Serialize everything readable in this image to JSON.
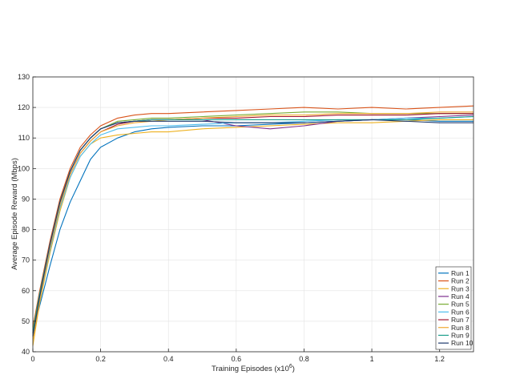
{
  "chart_data": {
    "type": "line",
    "title": "",
    "xlabel": "Training Episodes (x10",
    "xlabel_exp": "6",
    "xlabel_close": ")",
    "ylabel": "Average Episode Reward (Mbps)",
    "xlim": [
      0,
      1.3
    ],
    "ylim": [
      40,
      130
    ],
    "x_ticks": [
      0,
      0.2,
      0.4,
      0.6,
      0.8,
      1,
      1.2
    ],
    "x_tick_labels": [
      "0",
      "0.2",
      "0.4",
      "0.6",
      "0.8",
      "1",
      "1.2"
    ],
    "y_ticks": [
      40,
      50,
      60,
      70,
      80,
      90,
      100,
      110,
      120,
      130
    ],
    "y_tick_labels": [
      "40",
      "50",
      "60",
      "70",
      "80",
      "90",
      "100",
      "110",
      "120",
      "130"
    ],
    "grid": true,
    "legend_position": "bottom-right",
    "series": [
      {
        "name": "Run 1",
        "color": "#0072BD",
        "x": [
          0,
          0.02,
          0.05,
          0.08,
          0.11,
          0.14,
          0.17,
          0.2,
          0.25,
          0.3,
          0.35,
          0.4,
          0.5,
          0.6,
          0.7,
          0.8,
          0.9,
          1.0,
          1.1,
          1.2,
          1.3
        ],
        "y": [
          46,
          55,
          68,
          80,
          89,
          96,
          103,
          107,
          110,
          112,
          113,
          113.5,
          114,
          114,
          114.5,
          115,
          115.5,
          116,
          116,
          115.5,
          115.5
        ]
      },
      {
        "name": "Run 2",
        "color": "#D95319",
        "x": [
          0,
          0.02,
          0.05,
          0.08,
          0.11,
          0.14,
          0.17,
          0.2,
          0.25,
          0.3,
          0.35,
          0.4,
          0.5,
          0.6,
          0.7,
          0.8,
          0.9,
          1.0,
          1.1,
          1.2,
          1.3
        ],
        "y": [
          48,
          60,
          76,
          90,
          100,
          107,
          111,
          114,
          116.5,
          117.5,
          118,
          118,
          118.5,
          119,
          119.5,
          120,
          119.5,
          120,
          119.5,
          120,
          120.5
        ]
      },
      {
        "name": "Run 3",
        "color": "#EDB120",
        "x": [
          0,
          0.02,
          0.05,
          0.08,
          0.11,
          0.14,
          0.17,
          0.2,
          0.25,
          0.3,
          0.35,
          0.4,
          0.5,
          0.6,
          0.7,
          0.8,
          0.9,
          1.0,
          1.1,
          1.2,
          1.3
        ],
        "y": [
          42,
          56,
          72,
          86,
          97,
          104,
          108,
          110,
          111,
          111.5,
          112,
          112,
          113,
          113.5,
          114,
          114.5,
          115,
          115,
          115.5,
          116,
          116
        ]
      },
      {
        "name": "Run 4",
        "color": "#7E2F8E",
        "x": [
          0,
          0.02,
          0.05,
          0.08,
          0.11,
          0.14,
          0.17,
          0.2,
          0.25,
          0.3,
          0.35,
          0.4,
          0.5,
          0.6,
          0.7,
          0.8,
          0.9,
          1.0,
          1.1,
          1.2,
          1.3
        ],
        "y": [
          47,
          59,
          75,
          89,
          99,
          106,
          110,
          113,
          115,
          115.5,
          116,
          116,
          116,
          114,
          113,
          114,
          115.5,
          116,
          116.5,
          117,
          117.5
        ]
      },
      {
        "name": "Run 5",
        "color": "#77AC30",
        "x": [
          0,
          0.02,
          0.05,
          0.08,
          0.11,
          0.14,
          0.17,
          0.2,
          0.25,
          0.3,
          0.35,
          0.4,
          0.5,
          0.6,
          0.7,
          0.8,
          0.9,
          1.0,
          1.1,
          1.2,
          1.3
        ],
        "y": [
          47,
          59,
          75,
          89,
          99,
          106,
          110,
          113,
          115.5,
          116,
          116.5,
          116.5,
          117,
          117.5,
          118,
          118.5,
          118.5,
          118,
          118,
          118,
          118
        ]
      },
      {
        "name": "Run 6",
        "color": "#4DBEEE",
        "x": [
          0,
          0.02,
          0.05,
          0.08,
          0.11,
          0.14,
          0.17,
          0.2,
          0.25,
          0.3,
          0.35,
          0.4,
          0.5,
          0.6,
          0.7,
          0.8,
          0.9,
          1.0,
          1.1,
          1.2,
          1.3
        ],
        "y": [
          45,
          57,
          73,
          87,
          97,
          104,
          108,
          111,
          113,
          113.5,
          114,
          114,
          114.5,
          115,
          115,
          115.5,
          116,
          116,
          116.5,
          116.5,
          117
        ]
      },
      {
        "name": "Run 7",
        "color": "#A2142F",
        "x": [
          0,
          0.02,
          0.05,
          0.08,
          0.11,
          0.14,
          0.17,
          0.2,
          0.25,
          0.3,
          0.35,
          0.4,
          0.5,
          0.6,
          0.7,
          0.8,
          0.9,
          1.0,
          1.1,
          1.2,
          1.3
        ],
        "y": [
          46,
          58,
          74,
          88,
          98,
          105,
          109,
          112,
          114.5,
          115.5,
          116,
          116,
          116.5,
          116.5,
          117,
          117,
          117.5,
          117.5,
          117.5,
          118,
          118
        ]
      },
      {
        "name": "Run 8",
        "color": "#F0A830",
        "x": [
          0,
          0.02,
          0.05,
          0.08,
          0.11,
          0.14,
          0.17,
          0.2,
          0.25,
          0.3,
          0.35,
          0.4,
          0.5,
          0.6,
          0.7,
          0.8,
          0.9,
          1.0,
          1.1,
          1.2,
          1.3
        ],
        "y": [
          44,
          57,
          74,
          88,
          98,
          105,
          109,
          112,
          114,
          115,
          115.5,
          116,
          116.5,
          117,
          117.5,
          117.5,
          118,
          118,
          118,
          118.5,
          118.5
        ]
      },
      {
        "name": "Run 9",
        "color": "#1B9E8A",
        "x": [
          0,
          0.02,
          0.05,
          0.08,
          0.11,
          0.14,
          0.17,
          0.2,
          0.25,
          0.3,
          0.35,
          0.4,
          0.5,
          0.6,
          0.7,
          0.8,
          0.9,
          1.0,
          1.1,
          1.2,
          1.3
        ],
        "y": [
          46,
          59,
          75,
          89,
          99,
          106,
          110,
          113,
          115,
          115.5,
          116,
          116,
          116,
          116,
          116,
          116,
          116,
          116,
          116,
          116.5,
          117
        ]
      },
      {
        "name": "Run 10",
        "color": "#1F3A6E",
        "x": [
          0,
          0.02,
          0.05,
          0.08,
          0.11,
          0.14,
          0.17,
          0.2,
          0.25,
          0.3,
          0.35,
          0.4,
          0.5,
          0.6,
          0.7,
          0.8,
          0.9,
          1.0,
          1.1,
          1.2,
          1.3
        ],
        "y": [
          45,
          58,
          75,
          89,
          99,
          106,
          110,
          113,
          115,
          115.5,
          115.5,
          115.5,
          115.5,
          115,
          115,
          115,
          115.5,
          116,
          115.5,
          115,
          115
        ]
      }
    ]
  }
}
